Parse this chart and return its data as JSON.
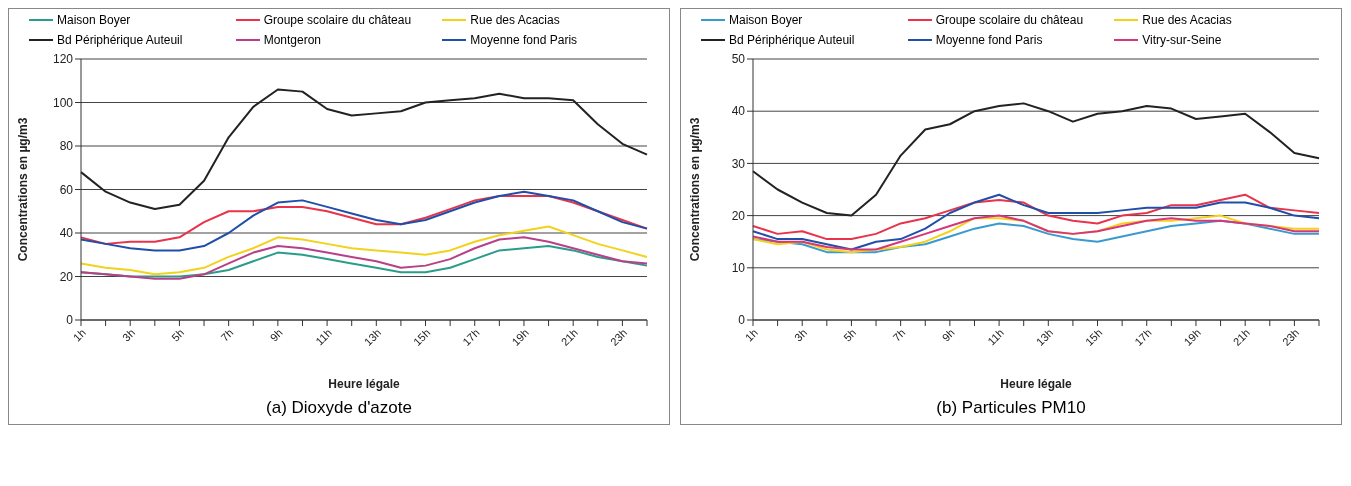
{
  "chart_data": [
    {
      "type": "line",
      "title": "(a) Dioxyde d'azote",
      "xlabel": "Heure légale",
      "ylabel": "Concentrations en µg/m3",
      "categories": [
        "1h",
        null,
        "3h",
        null,
        "5h",
        null,
        "7h",
        null,
        "9h",
        null,
        "11h",
        null,
        "13h",
        null,
        "15h",
        null,
        "17h",
        null,
        "19h",
        null,
        "21h",
        null,
        "23h",
        null
      ],
      "ylim": [
        0,
        120
      ],
      "yticks": [
        0,
        20,
        40,
        60,
        80,
        100,
        120
      ],
      "grid": "y",
      "legend": "top",
      "marker": "none",
      "series": [
        {
          "name": "Maison Boyer",
          "color": "#2a9d8a",
          "values": [
            22,
            21,
            20,
            20,
            20,
            21,
            23,
            27,
            31,
            30,
            28,
            26,
            24,
            22,
            22,
            24,
            28,
            32,
            33,
            34,
            32,
            29,
            27,
            25
          ]
        },
        {
          "name": "Groupe scolaire du château",
          "color": "#e8334a",
          "values": [
            38,
            35,
            36,
            36,
            38,
            45,
            50,
            50,
            52,
            52,
            50,
            47,
            44,
            44,
            47,
            51,
            55,
            57,
            57,
            57,
            54,
            50,
            46,
            42
          ]
        },
        {
          "name": "Rue des Acacias",
          "color": "#f2d21b",
          "values": [
            26,
            24,
            23,
            21,
            22,
            24,
            29,
            33,
            38,
            37,
            35,
            33,
            32,
            31,
            30,
            32,
            36,
            39,
            41,
            43,
            39,
            35,
            32,
            29
          ]
        },
        {
          "name": "Bd Périphérique Auteuil",
          "color": "#222222",
          "values": [
            68,
            59,
            54,
            51,
            53,
            64,
            84,
            98,
            106,
            105,
            97,
            94,
            95,
            96,
            100,
            101,
            102,
            104,
            102,
            102,
            101,
            90,
            81,
            76
          ]
        },
        {
          "name": "Montgeron",
          "color": "#b8408a",
          "values": [
            22,
            21,
            20,
            19,
            19,
            21,
            26,
            31,
            34,
            33,
            31,
            29,
            27,
            24,
            25,
            28,
            33,
            37,
            38,
            36,
            33,
            30,
            27,
            26
          ]
        },
        {
          "name": "Moyenne fond Paris",
          "color": "#1f4fa8",
          "values": [
            37,
            35,
            33,
            32,
            32,
            34,
            40,
            48,
            54,
            55,
            52,
            49,
            46,
            44,
            46,
            50,
            54,
            57,
            59,
            57,
            55,
            50,
            45,
            42
          ]
        }
      ]
    },
    {
      "type": "line",
      "title": "(b) Particules PM10",
      "xlabel": "Heure légale",
      "ylabel": "Concentrations en µg/m3",
      "categories": [
        "1h",
        null,
        "3h",
        null,
        "5h",
        null,
        "7h",
        null,
        "9h",
        null,
        "11h",
        null,
        "13h",
        null,
        "15h",
        null,
        "17h",
        null,
        "19h",
        null,
        "21h",
        null,
        "23h",
        null
      ],
      "ylim": [
        0,
        50
      ],
      "yticks": [
        0,
        10,
        20,
        30,
        40,
        50
      ],
      "grid": "y",
      "legend": "top",
      "marker": "none",
      "series": [
        {
          "name": "Maison Boyer",
          "color": "#3a9ad0",
          "values": [
            15.5,
            15,
            14.5,
            13,
            13,
            13,
            14,
            14.5,
            16,
            17.5,
            18.5,
            18,
            16.5,
            15.5,
            15,
            16,
            17,
            18,
            18.5,
            19,
            18.5,
            17.5,
            16.5,
            16.5
          ]
        },
        {
          "name": "Groupe scolaire du château",
          "color": "#e8334a",
          "values": [
            18,
            16.5,
            17,
            15.5,
            15.5,
            16.5,
            18.5,
            19.5,
            21,
            22.5,
            23,
            22.5,
            20,
            19,
            18.5,
            20,
            20.5,
            22,
            22,
            23,
            24,
            21.5,
            21,
            20.5
          ]
        },
        {
          "name": "Rue des Acacias",
          "color": "#f2d21b",
          "values": [
            15.5,
            14.5,
            15,
            13.5,
            13,
            13.5,
            14,
            15,
            17,
            19.5,
            19.5,
            19,
            17,
            16.5,
            17,
            18.5,
            19,
            19,
            19.5,
            20,
            18.5,
            18,
            17.5,
            17.5
          ]
        },
        {
          "name": "Bd Périphérique Auteuil",
          "color": "#222222",
          "values": [
            28.5,
            25,
            22.5,
            20.5,
            20,
            24,
            31.5,
            36.5,
            37.5,
            40,
            41,
            41.5,
            40,
            38,
            39.5,
            40,
            41,
            40.5,
            38.5,
            39,
            39.5,
            36,
            32,
            31
          ]
        },
        {
          "name": "Moyenne fond Paris",
          "color": "#1f4fa8",
          "values": [
            17,
            15.5,
            15.5,
            14.5,
            13.5,
            15,
            15.5,
            17.5,
            20.5,
            22.5,
            24,
            22,
            20.5,
            20.5,
            20.5,
            21,
            21.5,
            21.5,
            21.5,
            22.5,
            22.5,
            21.5,
            20,
            19.5
          ]
        },
        {
          "name": "Vitry-sur-Seine",
          "color": "#d6367a",
          "values": [
            16,
            15,
            15,
            14,
            13.5,
            13.5,
            15,
            16.5,
            18,
            19.5,
            20,
            19,
            17,
            16.5,
            17,
            18,
            19,
            19.5,
            19,
            19,
            18.5,
            18,
            17,
            17
          ]
        }
      ]
    }
  ]
}
